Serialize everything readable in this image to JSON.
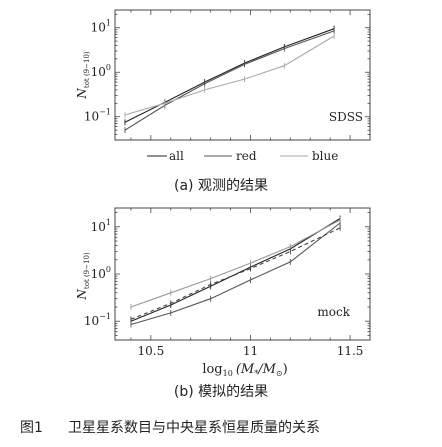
{
  "figure": {
    "caption_label": "图1",
    "caption_text": "卫星星系数目与中央星系恒星质量的关系"
  },
  "chart_data": [
    {
      "type": "line",
      "panel_label": "(a) 观测的结果",
      "inset_label": "SDSS",
      "ylabel_main": "N",
      "ylabel_sub": "tot (9−10)",
      "yscale": "log",
      "xlim": [
        10.32,
        11.6
      ],
      "ylim": [
        0.03,
        25
      ],
      "ytick_labels": [
        {
          "value": 0.1,
          "base": "10",
          "exp": "−1"
        },
        {
          "value": 1,
          "base": "10",
          "exp": "0"
        },
        {
          "value": 10,
          "base": "10",
          "exp": "1"
        }
      ],
      "legend_placement": "below",
      "legend": [
        {
          "name": "all",
          "color": "#222222",
          "width": 1.1
        },
        {
          "name": "red",
          "color": "#555555",
          "width": 1.1
        },
        {
          "name": "blue",
          "color": "#aaaaaa",
          "width": 1.1
        }
      ],
      "series": [
        {
          "name": "all",
          "x": [
            10.37,
            10.57,
            10.77,
            10.97,
            11.17,
            11.42
          ],
          "y": [
            0.075,
            0.21,
            0.6,
            1.6,
            3.7,
            9.5
          ]
        },
        {
          "name": "red",
          "x": [
            10.37,
            10.57,
            10.77,
            10.97,
            11.17,
            11.42
          ],
          "y": [
            0.05,
            0.18,
            0.55,
            1.5,
            3.4,
            8.5
          ]
        },
        {
          "name": "blue",
          "x": [
            10.37,
            10.57,
            10.77,
            10.97,
            11.17,
            11.42
          ],
          "y": [
            0.11,
            0.2,
            0.4,
            0.7,
            1.4,
            6.5
          ]
        }
      ]
    },
    {
      "type": "line",
      "panel_label": "(b) 模拟的结果",
      "inset_label": "mock",
      "ylabel_main": "N",
      "ylabel_sub": "tot (9−10)",
      "xlabel_prefix": "log",
      "xlabel_sub": "10",
      "xlabel_var": "(M",
      "xlabel_var_sub": "*",
      "xlabel_mid": "/M",
      "xlabel_sun": "⊙",
      "xlabel_end": ")",
      "yscale": "log",
      "xlim": [
        10.32,
        11.6
      ],
      "ylim": [
        0.04,
        25
      ],
      "xtick_labels": [
        "10.5",
        "11",
        "11.5"
      ],
      "xticks": [
        10.5,
        11.0,
        11.5
      ],
      "ytick_labels": [
        {
          "value": 0.1,
          "base": "10",
          "exp": "−1"
        },
        {
          "value": 1,
          "base": "10",
          "exp": "0"
        },
        {
          "value": 10,
          "base": "10",
          "exp": "1"
        }
      ],
      "series": [
        {
          "color": "#222222",
          "dash": "",
          "x": [
            10.4,
            10.6,
            10.8,
            11.0,
            11.2,
            11.45
          ],
          "y": [
            0.1,
            0.22,
            0.55,
            1.4,
            3.4,
            15
          ]
        },
        {
          "color": "#555555",
          "dash": "",
          "x": [
            10.4,
            10.6,
            10.8,
            11.0,
            11.2,
            11.45
          ],
          "y": [
            0.085,
            0.15,
            0.3,
            0.75,
            1.8,
            12
          ]
        },
        {
          "color": "#999999",
          "dash": "",
          "x": [
            10.4,
            10.6,
            10.8,
            11.0,
            11.2,
            11.45
          ],
          "y": [
            0.2,
            0.4,
            0.8,
            1.7,
            3.8,
            14
          ]
        },
        {
          "color": "#444444",
          "dash": "4,3",
          "x": [
            10.4,
            10.6,
            10.8,
            11.0,
            11.2,
            11.45
          ],
          "y": [
            0.11,
            0.24,
            0.6,
            1.3,
            3.0,
            9.5
          ]
        }
      ]
    }
  ]
}
